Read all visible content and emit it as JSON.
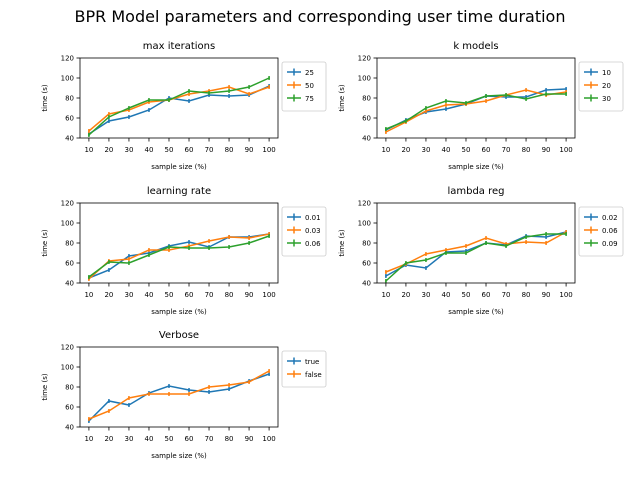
{
  "suptitle": "BPR Model parameters and corresponding user time duration",
  "colors": {
    "blue": "#1f77b4",
    "orange": "#ff7f0e",
    "green": "#2ca02c"
  },
  "chart_data": [
    {
      "type": "line",
      "title": "max iterations",
      "xlabel": "sample size (%)",
      "ylabel": "time (s)",
      "x": [
        10,
        20,
        30,
        40,
        50,
        60,
        70,
        80,
        90,
        100
      ],
      "ylim": [
        40,
        120
      ],
      "yticks": [
        40,
        60,
        80,
        100,
        120
      ],
      "legend": "outside-right",
      "series": [
        {
          "name": "25",
          "color": "#1f77b4",
          "values": [
            44,
            57,
            61,
            68,
            80,
            77,
            83,
            82,
            83,
            92
          ],
          "err": [
            2,
            2,
            2,
            2,
            2,
            2,
            2,
            2,
            2,
            2
          ]
        },
        {
          "name": "50",
          "color": "#ff7f0e",
          "values": [
            47,
            64,
            68,
            76,
            78,
            84,
            87,
            91,
            84,
            91
          ],
          "err": [
            2,
            2,
            2,
            2,
            2,
            2,
            2,
            2,
            2,
            2
          ]
        },
        {
          "name": "75",
          "color": "#2ca02c",
          "values": [
            43,
            61,
            70,
            78,
            78,
            87,
            85,
            87,
            91,
            100
          ],
          "err": [
            2,
            2,
            2,
            2,
            2,
            2,
            2,
            2,
            2,
            2
          ]
        }
      ]
    },
    {
      "type": "line",
      "title": "k models",
      "xlabel": "sample size (%)",
      "ylabel": "time (s)",
      "x": [
        10,
        20,
        30,
        40,
        50,
        60,
        70,
        80,
        90,
        100
      ],
      "ylim": [
        40,
        120
      ],
      "yticks": [
        40,
        60,
        80,
        100,
        120
      ],
      "legend": "outside-right",
      "series": [
        {
          "name": "10",
          "color": "#1f77b4",
          "values": [
            48,
            58,
            66,
            69,
            74,
            82,
            81,
            81,
            88,
            89
          ],
          "err": [
            2,
            2,
            2,
            2,
            2,
            2,
            2,
            2,
            2,
            2
          ]
        },
        {
          "name": "20",
          "color": "#ff7f0e",
          "values": [
            46,
            56,
            67,
            73,
            74,
            77,
            83,
            88,
            83,
            86
          ],
          "err": [
            2,
            2,
            2,
            2,
            2,
            2,
            2,
            2,
            2,
            2
          ]
        },
        {
          "name": "30",
          "color": "#2ca02c",
          "values": [
            49,
            57,
            70,
            77,
            75,
            82,
            83,
            79,
            84,
            84
          ],
          "err": [
            2,
            2,
            2,
            2,
            2,
            2,
            2,
            2,
            2,
            2
          ]
        }
      ]
    },
    {
      "type": "line",
      "title": "learning rate",
      "xlabel": "sample size (%)",
      "ylabel": "time (s)",
      "x": [
        10,
        20,
        30,
        40,
        50,
        60,
        70,
        80,
        90,
        100
      ],
      "ylim": [
        40,
        120
      ],
      "yticks": [
        40,
        60,
        80,
        100,
        120
      ],
      "legend": "outside-right",
      "series": [
        {
          "name": "0.01",
          "color": "#1f77b4",
          "values": [
            45,
            53,
            67,
            70,
            77,
            81,
            76,
            86,
            86,
            89
          ],
          "err": [
            2,
            2,
            2,
            2,
            2,
            2,
            2,
            2,
            2,
            2
          ]
        },
        {
          "name": "0.03",
          "color": "#ff7f0e",
          "values": [
            44,
            62,
            64,
            73,
            73,
            77,
            82,
            86,
            85,
            89
          ],
          "err": [
            2,
            2,
            2,
            2,
            2,
            2,
            2,
            2,
            2,
            2
          ]
        },
        {
          "name": "0.06",
          "color": "#2ca02c",
          "values": [
            46,
            61,
            60,
            68,
            76,
            75,
            75,
            76,
            80,
            87
          ],
          "err": [
            2,
            2,
            2,
            2,
            2,
            2,
            2,
            2,
            2,
            2
          ]
        }
      ]
    },
    {
      "type": "line",
      "title": "lambda reg",
      "xlabel": "sample size (%)",
      "ylabel": "time (s)",
      "x": [
        10,
        20,
        30,
        40,
        50,
        60,
        70,
        80,
        90,
        100
      ],
      "ylim": [
        40,
        120
      ],
      "yticks": [
        40,
        60,
        80,
        100,
        120
      ],
      "legend": "outside-right",
      "series": [
        {
          "name": "0.02",
          "color": "#1f77b4",
          "values": [
            47,
            58,
            55,
            71,
            72,
            80,
            78,
            87,
            86,
            91
          ],
          "err": [
            2,
            2,
            2,
            2,
            2,
            2,
            2,
            2,
            2,
            2
          ]
        },
        {
          "name": "0.06",
          "color": "#ff7f0e",
          "values": [
            51,
            59,
            69,
            73,
            77,
            85,
            79,
            81,
            80,
            91
          ],
          "err": [
            2,
            2,
            2,
            2,
            2,
            2,
            2,
            2,
            2,
            2
          ]
        },
        {
          "name": "0.09",
          "color": "#2ca02c",
          "values": [
            42,
            60,
            63,
            70,
            70,
            80,
            77,
            86,
            89,
            89
          ],
          "err": [
            2,
            2,
            2,
            2,
            2,
            2,
            2,
            2,
            2,
            2
          ]
        }
      ]
    },
    {
      "type": "line",
      "title": "Verbose",
      "xlabel": "sample size (%)",
      "ylabel": "time (s)",
      "x": [
        10,
        20,
        30,
        40,
        50,
        60,
        70,
        80,
        90,
        100
      ],
      "ylim": [
        40,
        120
      ],
      "yticks": [
        40,
        60,
        80,
        100,
        120
      ],
      "legend": "outside-right",
      "series": [
        {
          "name": "true",
          "color": "#1f77b4",
          "values": [
            46,
            66,
            62,
            74,
            81,
            77,
            75,
            78,
            86,
            93
          ],
          "err": [
            2,
            2,
            2,
            2,
            2,
            2,
            2,
            2,
            2,
            2
          ]
        },
        {
          "name": "false",
          "color": "#ff7f0e",
          "values": [
            48,
            56,
            69,
            73,
            73,
            73,
            80,
            82,
            85,
            96
          ],
          "err": [
            2,
            2,
            2,
            2,
            2,
            2,
            2,
            2,
            2,
            2
          ]
        }
      ]
    }
  ]
}
